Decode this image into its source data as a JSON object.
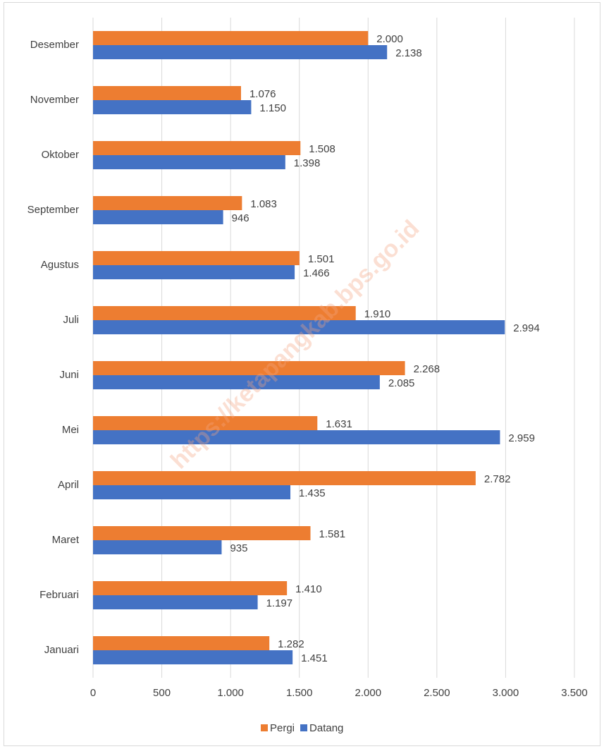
{
  "chart_data": {
    "type": "hbar",
    "watermark": "https://ketapangkab.bps.go.id",
    "categories": [
      "Januari",
      "Februari",
      "Maret",
      "April",
      "Mei",
      "Juni",
      "Juli",
      "Agustus",
      "September",
      "Oktober",
      "November",
      "Desember"
    ],
    "series": [
      {
        "name": "Pergi",
        "color": "#ed7d31",
        "values": [
          1282,
          1410,
          1581,
          2782,
          1631,
          2268,
          1910,
          1501,
          1083,
          1508,
          1076,
          2000
        ],
        "value_labels": [
          "1.282",
          "1.410",
          "1.581",
          "2.782",
          "1.631",
          "2.268",
          "1.910",
          "1.501",
          "1.083",
          "1.508",
          "1.076",
          "2.000"
        ]
      },
      {
        "name": "Datang",
        "color": "#4472c4",
        "values": [
          1451,
          1197,
          935,
          1435,
          2959,
          2085,
          2994,
          1466,
          946,
          1398,
          1150,
          2138
        ],
        "value_labels": [
          "1.451",
          "1.197",
          "935",
          "1.435",
          "2.959",
          "2.085",
          "2.994",
          "1.466",
          "946",
          "1.398",
          "1.150",
          "2.138"
        ]
      }
    ],
    "xlim": [
      0,
      3500
    ],
    "xticks": [
      0,
      500,
      {
        "value": 1000,
        "label": "1.000"
      },
      {
        "value": 1500,
        "label": "1.500"
      },
      {
        "value": 2000,
        "label": "2.000"
      },
      {
        "value": 2500,
        "label": "2.500"
      },
      {
        "value": 3000,
        "label": "3.000"
      },
      {
        "value": 3500,
        "label": "3.500"
      }
    ],
    "grid": true,
    "legend": "bottom"
  }
}
